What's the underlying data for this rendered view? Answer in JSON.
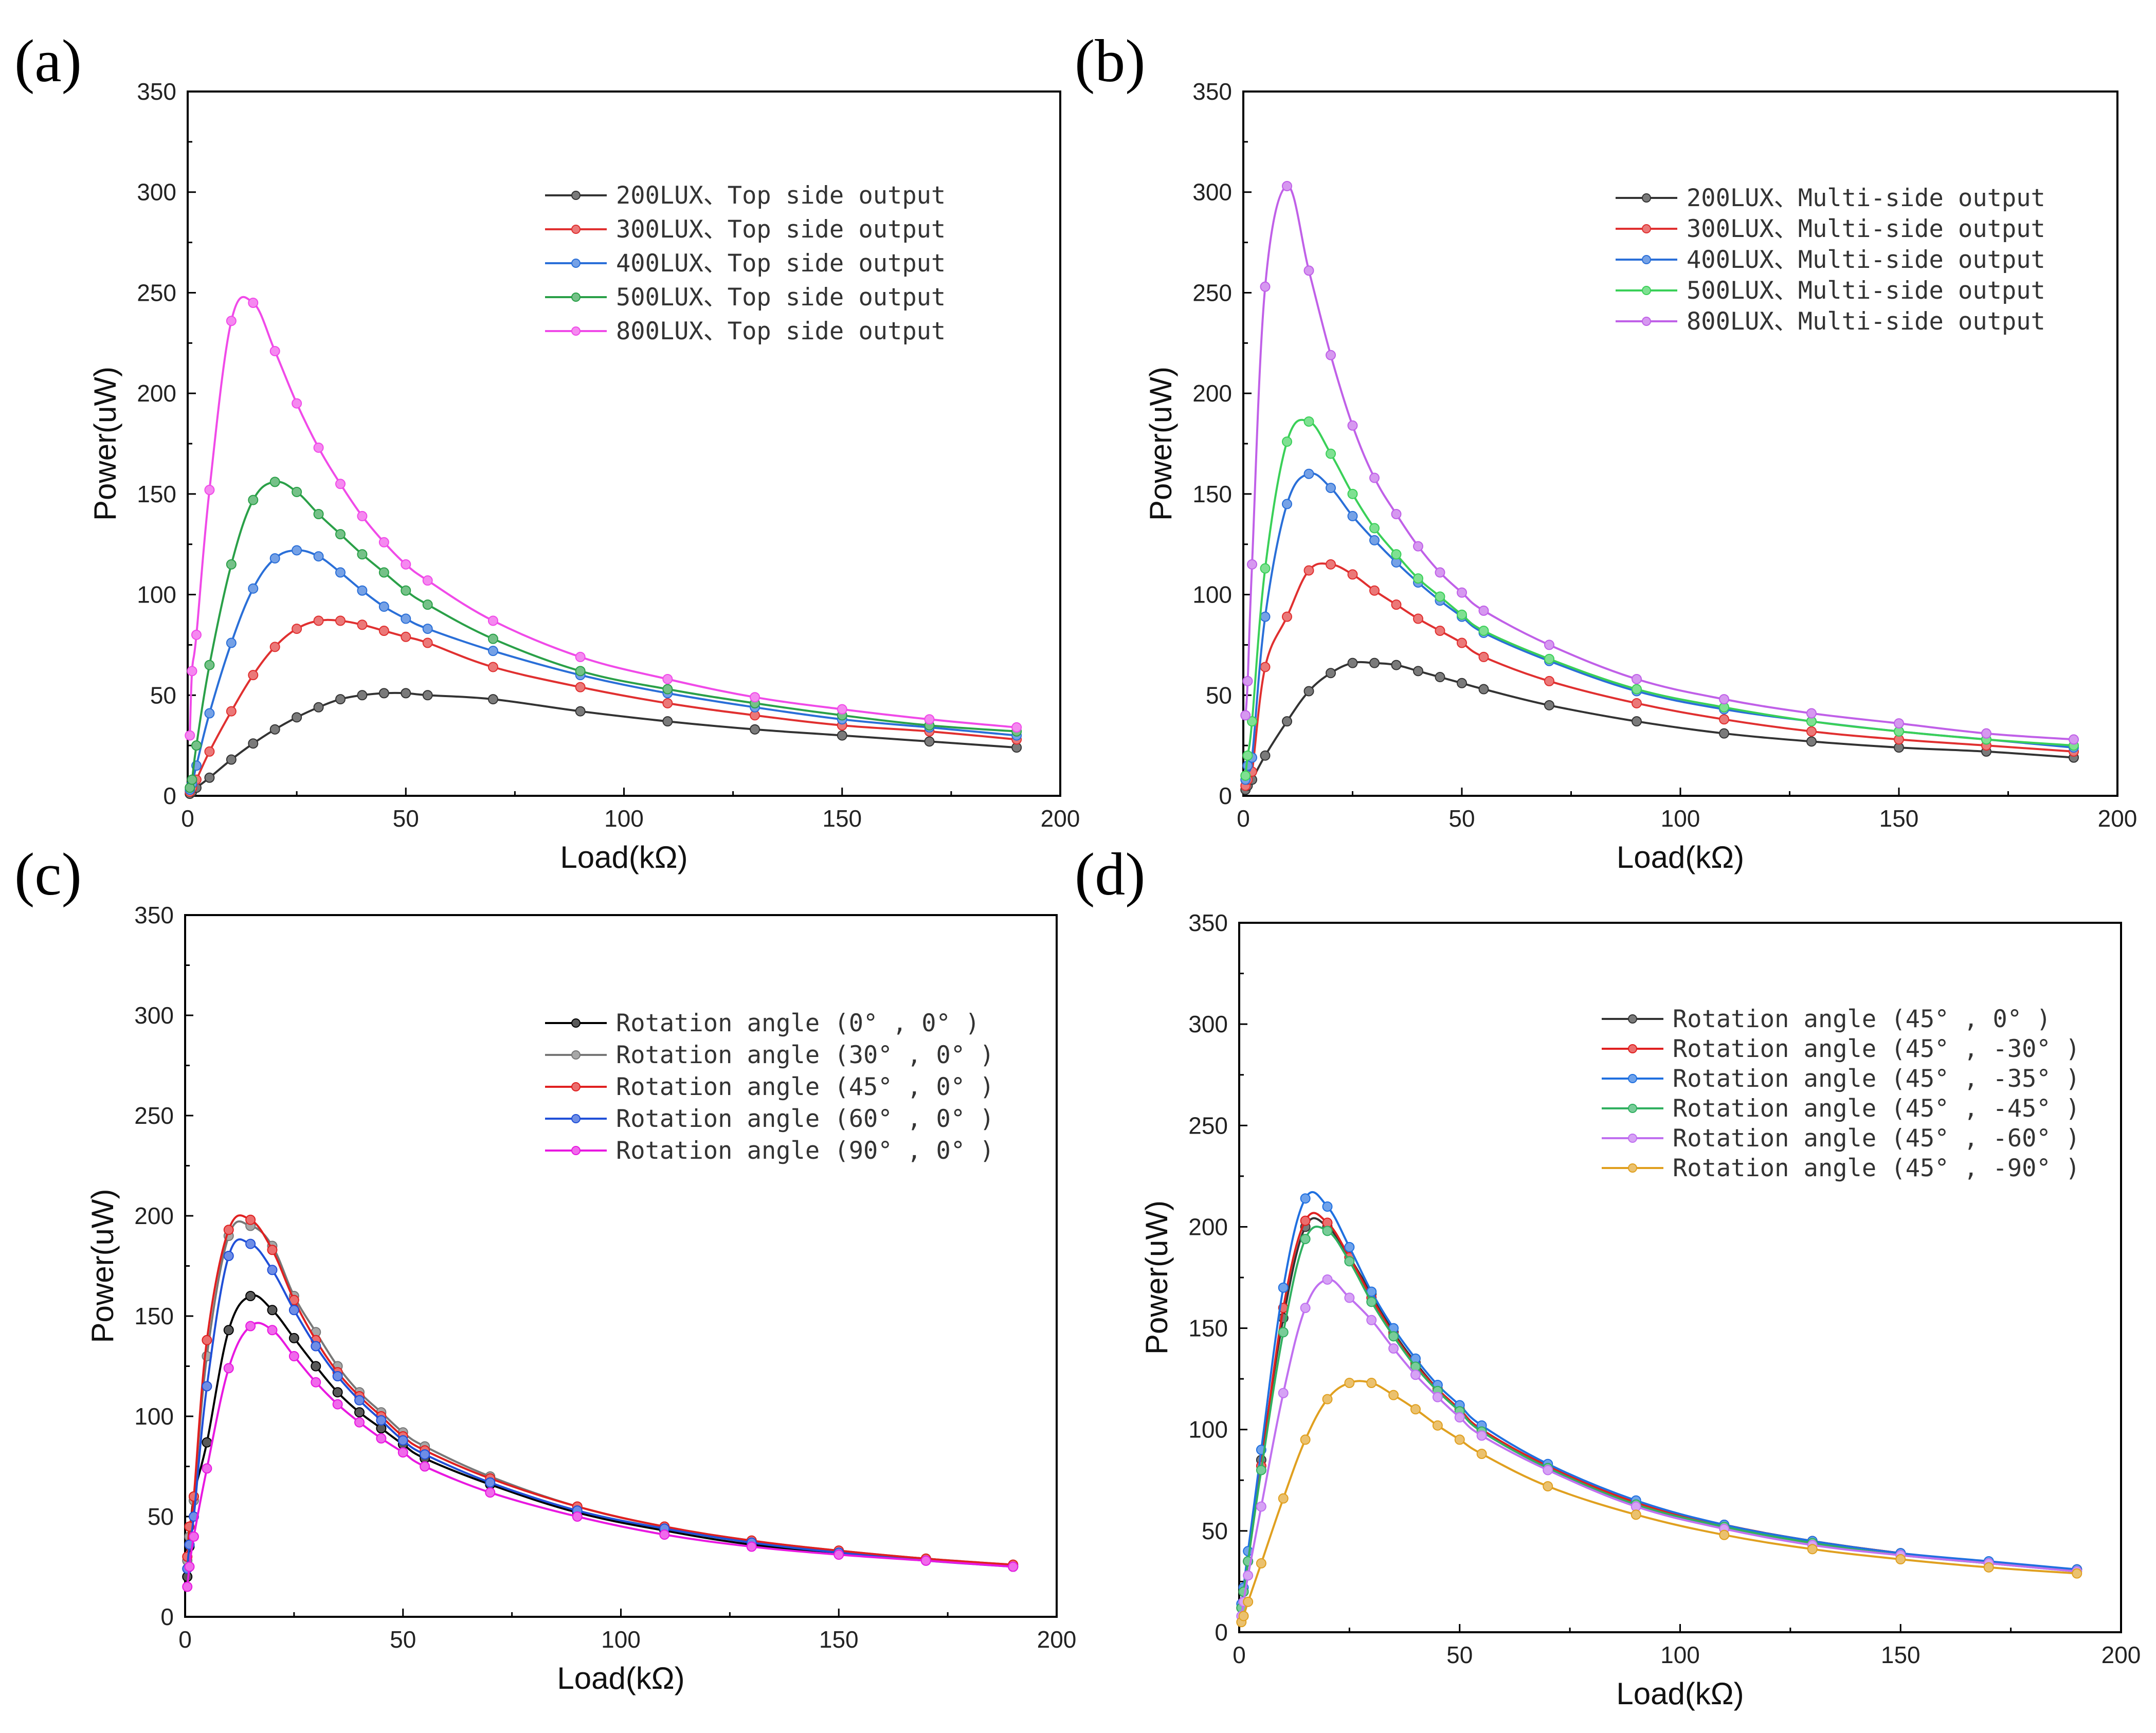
{
  "chart_data": [
    {
      "panel_label": "(a)",
      "type": "line",
      "xlabel": "Load(kΩ)",
      "ylabel": "Power(uW)",
      "xlim": [
        0,
        200
      ],
      "ylim": [
        0,
        350
      ],
      "xticks": [
        "0",
        "50",
        "100",
        "150",
        "200"
      ],
      "yticks": [
        "0",
        "50",
        "100",
        "150",
        "200",
        "250",
        "300",
        "350"
      ],
      "legend_position": "top-right",
      "x": [
        0.5,
        1,
        2,
        5,
        10,
        15,
        20,
        25,
        30,
        35,
        40,
        45,
        50,
        55,
        70,
        90,
        110,
        130,
        150,
        170,
        190
      ],
      "series": [
        {
          "name": "200LUX、Top side output",
          "color": "#333333",
          "values": [
            1,
            2,
            4,
            9,
            18,
            26,
            33,
            39,
            44,
            48,
            50,
            51,
            51,
            50,
            48,
            42,
            37,
            33,
            30,
            27,
            24
          ]
        },
        {
          "name": "300LUX、Top side output",
          "color": "#e03030",
          "values": [
            2,
            4,
            8,
            22,
            42,
            60,
            74,
            83,
            87,
            87,
            85,
            82,
            79,
            76,
            64,
            54,
            46,
            40,
            35,
            32,
            28
          ]
        },
        {
          "name": "400LUX、Top side output",
          "color": "#2a6fd8",
          "values": [
            3,
            6,
            15,
            41,
            76,
            103,
            118,
            122,
            119,
            111,
            102,
            94,
            88,
            83,
            72,
            60,
            51,
            44,
            38,
            34,
            30
          ]
        },
        {
          "name": "500LUX、Top side output",
          "color": "#2aa048",
          "values": [
            4,
            8,
            25,
            65,
            115,
            147,
            156,
            151,
            140,
            130,
            120,
            111,
            102,
            95,
            78,
            62,
            53,
            46,
            40,
            35,
            32
          ]
        },
        {
          "name": "800LUX、Top side output",
          "color": "#f04ae8",
          "values": [
            30,
            62,
            80,
            152,
            236,
            245,
            221,
            195,
            173,
            155,
            139,
            126,
            115,
            107,
            87,
            69,
            58,
            49,
            43,
            38,
            34
          ]
        }
      ]
    },
    {
      "panel_label": "(b)",
      "type": "line",
      "xlabel": "Load(kΩ)",
      "ylabel": "Power(uW)",
      "xlim": [
        0,
        200
      ],
      "ylim": [
        0,
        350
      ],
      "xticks": [
        "0",
        "50",
        "100",
        "150",
        "200"
      ],
      "yticks": [
        "0",
        "50",
        "100",
        "150",
        "200",
        "250",
        "300",
        "350"
      ],
      "legend_position": "top-right",
      "x": [
        0.5,
        1,
        2,
        5,
        10,
        15,
        20,
        25,
        30,
        35,
        40,
        45,
        50,
        55,
        70,
        90,
        110,
        130,
        150,
        170,
        190
      ],
      "series": [
        {
          "name": "200LUX、Multi-side output",
          "color": "#333333",
          "values": [
            3,
            5,
            8,
            20,
            37,
            52,
            61,
            66,
            66,
            65,
            62,
            59,
            56,
            53,
            45,
            37,
            31,
            27,
            24,
            22,
            19
          ]
        },
        {
          "name": "300LUX、Multi-side output",
          "color": "#e03030",
          "values": [
            5,
            8,
            12,
            64,
            89,
            112,
            115,
            110,
            102,
            95,
            88,
            82,
            76,
            69,
            57,
            46,
            38,
            32,
            28,
            25,
            22
          ]
        },
        {
          "name": "400LUX、Multi-side output",
          "color": "#2a6fd8",
          "values": [
            8,
            15,
            19,
            89,
            145,
            160,
            153,
            139,
            127,
            116,
            106,
            97,
            89,
            81,
            67,
            52,
            43,
            37,
            32,
            28,
            24
          ]
        },
        {
          "name": "500LUX、Multi-side output",
          "color": "#3ad058",
          "values": [
            10,
            20,
            37,
            113,
            176,
            186,
            170,
            150,
            133,
            120,
            108,
            99,
            90,
            82,
            68,
            53,
            44,
            37,
            32,
            28,
            25
          ]
        },
        {
          "name": "800LUX、Multi-side output",
          "color": "#c060e8",
          "values": [
            40,
            57,
            115,
            253,
            303,
            261,
            219,
            184,
            158,
            140,
            124,
            111,
            101,
            92,
            75,
            58,
            48,
            41,
            36,
            31,
            28
          ]
        }
      ]
    },
    {
      "panel_label": "(c)",
      "type": "line",
      "xlabel": "Load(kΩ)",
      "ylabel": "Power(uW)",
      "xlim": [
        0,
        200
      ],
      "ylim": [
        0,
        350
      ],
      "xticks": [
        "0",
        "50",
        "100",
        "150",
        "200"
      ],
      "yticks": [
        "0",
        "50",
        "100",
        "150",
        "200",
        "250",
        "300",
        "350"
      ],
      "legend_position": "top-right",
      "x": [
        0.5,
        1,
        2,
        5,
        10,
        15,
        20,
        25,
        30,
        35,
        40,
        45,
        50,
        55,
        70,
        90,
        110,
        130,
        150,
        170,
        190
      ],
      "series": [
        {
          "name": "Rotation angle (0° , 0° )",
          "color": "#000000",
          "values": [
            20,
            35,
            60,
            87,
            143,
            160,
            153,
            139,
            125,
            112,
            102,
            94,
            86,
            79,
            66,
            52,
            43,
            36,
            32,
            29,
            25
          ]
        },
        {
          "name": "Rotation angle (30° , 0° )",
          "color": "#777777",
          "values": [
            28,
            40,
            58,
            130,
            190,
            195,
            185,
            160,
            142,
            125,
            112,
            102,
            92,
            85,
            70,
            55,
            45,
            38,
            33,
            29,
            26
          ]
        },
        {
          "name": "Rotation angle (45° , 0° )",
          "color": "#e02020",
          "values": [
            30,
            45,
            60,
            138,
            193,
            198,
            183,
            158,
            138,
            122,
            110,
            100,
            90,
            83,
            69,
            55,
            45,
            38,
            33,
            29,
            26
          ]
        },
        {
          "name": "Rotation angle (60° , 0° )",
          "color": "#2050d8",
          "values": [
            24,
            36,
            50,
            115,
            180,
            186,
            173,
            153,
            135,
            120,
            108,
            98,
            88,
            81,
            67,
            53,
            44,
            37,
            32,
            28,
            25
          ]
        },
        {
          "name": "Rotation angle (90° , 0° )",
          "color": "#e818e0",
          "values": [
            15,
            25,
            40,
            74,
            124,
            145,
            143,
            130,
            117,
            106,
            97,
            89,
            82,
            75,
            62,
            50,
            41,
            35,
            31,
            28,
            25
          ]
        }
      ]
    },
    {
      "panel_label": "(d)",
      "type": "line",
      "xlabel": "Load(kΩ)",
      "ylabel": "Power(uW)",
      "xlim": [
        0,
        200
      ],
      "ylim": [
        0,
        350
      ],
      "xticks": [
        "0",
        "50",
        "100",
        "150",
        "200"
      ],
      "yticks": [
        "0",
        "50",
        "100",
        "150",
        "200",
        "250",
        "300",
        "350"
      ],
      "legend_position": "top-right",
      "x": [
        0.5,
        1,
        2,
        5,
        10,
        15,
        20,
        25,
        30,
        35,
        40,
        45,
        50,
        55,
        70,
        90,
        110,
        130,
        150,
        170,
        190
      ],
      "series": [
        {
          "name": "Rotation angle (45° , 0° )",
          "color": "#333333",
          "values": [
            12,
            20,
            35,
            85,
            155,
            200,
            200,
            185,
            167,
            148,
            133,
            120,
            110,
            100,
            82,
            64,
            53,
            45,
            39,
            34,
            31
          ]
        },
        {
          "name": "Rotation angle (45° , -30° )",
          "color": "#e02020",
          "values": [
            12,
            20,
            35,
            82,
            160,
            203,
            202,
            185,
            165,
            147,
            132,
            120,
            110,
            100,
            82,
            64,
            53,
            45,
            39,
            34,
            31
          ]
        },
        {
          "name": "Rotation angle (45° , -35° )",
          "color": "#2070e0",
          "values": [
            14,
            22,
            40,
            90,
            170,
            214,
            210,
            190,
            168,
            150,
            135,
            122,
            112,
            102,
            83,
            65,
            53,
            45,
            39,
            35,
            31
          ]
        },
        {
          "name": "Rotation angle (45° , -45° )",
          "color": "#30b060",
          "values": [
            12,
            20,
            35,
            80,
            148,
            194,
            198,
            183,
            163,
            146,
            131,
            119,
            109,
            99,
            81,
            63,
            52,
            44,
            38,
            34,
            30
          ]
        },
        {
          "name": "Rotation angle (45° , -60° )",
          "color": "#c070f0",
          "values": [
            8,
            15,
            28,
            62,
            118,
            160,
            174,
            165,
            154,
            140,
            127,
            116,
            106,
            97,
            80,
            62,
            51,
            43,
            38,
            34,
            30
          ]
        },
        {
          "name": "Rotation angle (45° , -90° )",
          "color": "#e0a020",
          "values": [
            5,
            8,
            15,
            34,
            66,
            95,
            115,
            123,
            123,
            117,
            110,
            102,
            95,
            88,
            72,
            58,
            48,
            41,
            36,
            32,
            29
          ]
        }
      ]
    }
  ]
}
